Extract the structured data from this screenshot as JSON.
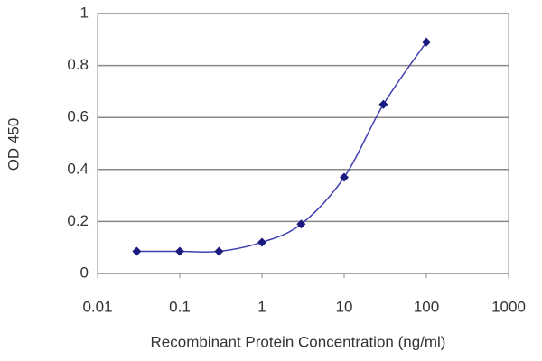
{
  "chart_data": {
    "type": "line",
    "xlabel": "Recombinant Protein Concentration (ng/ml)",
    "ylabel": "OD 450",
    "x": [
      0.03,
      0.1,
      0.3,
      1,
      3,
      10,
      30,
      100
    ],
    "series": [
      {
        "color": "#1a1a80",
        "values": [
          0.085,
          0.085,
          0.085,
          0.12,
          0.19,
          0.37,
          0.65,
          0.89
        ]
      }
    ],
    "xscale": "log",
    "xlim": [
      0.01,
      1000
    ],
    "xticks": [
      0.01,
      0.1,
      1,
      10,
      100,
      1000
    ],
    "ylim": [
      0,
      1
    ],
    "yticks": [
      0,
      0.2,
      0.4,
      0.6,
      0.8,
      1
    ],
    "grid": true
  }
}
